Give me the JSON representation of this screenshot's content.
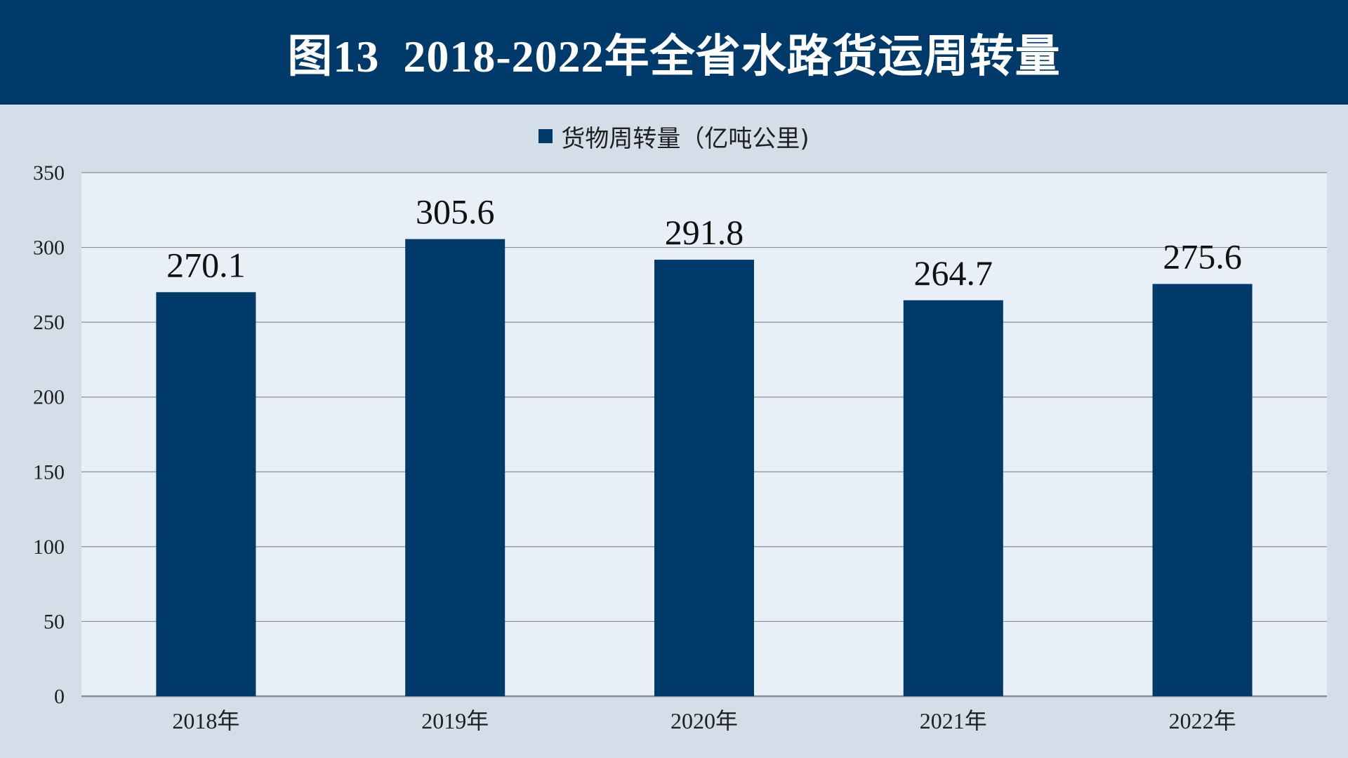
{
  "header": {
    "title": "图13  2018-2022年全省水路货运周转量"
  },
  "colors": {
    "header_bg": "#003a6b",
    "bar": "#003a6b",
    "plot_bg": "#e8eff7",
    "frame_bg": "#d3dee9",
    "gridline": "#8a8f96"
  },
  "chart_data": {
    "type": "bar",
    "title": "",
    "xlabel": "",
    "ylabel": "",
    "categories": [
      "2018年",
      "2019年",
      "2020年",
      "2021年",
      "2022年"
    ],
    "series": [
      {
        "name": "货物周转量（亿吨公里)",
        "values": [
          270.1,
          305.6,
          291.8,
          264.7,
          275.6
        ],
        "labels": [
          "270.1",
          "305.6",
          "291.8",
          "264.7",
          "275.6"
        ]
      }
    ],
    "ylim": [
      0,
      350
    ],
    "yticks": [
      0,
      50,
      100,
      150,
      200,
      250,
      300,
      350
    ],
    "grid": true,
    "legend": "top-center",
    "data_labels": true
  }
}
